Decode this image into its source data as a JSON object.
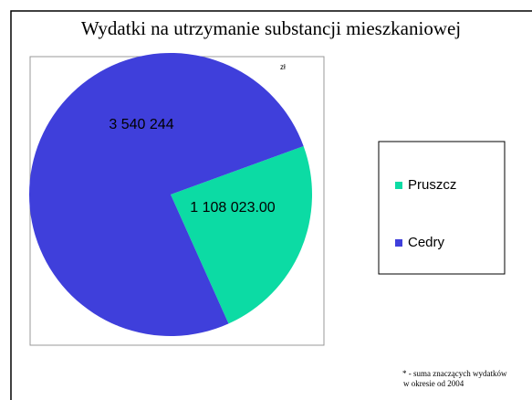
{
  "chart_data": {
    "type": "pie",
    "title": "Wydatki na utrzymanie substancji mieszkaniowej",
    "unit": "zł",
    "categories": [
      "Pruszcz",
      "Cedry"
    ],
    "values": [
      1108023.0,
      3540244
    ],
    "value_labels": [
      "1 108 023.00",
      "3 540 244"
    ],
    "colors": [
      "#0cdba4",
      "#3f3fdb"
    ],
    "legend": "right",
    "footnote": [
      "* - suma znaczących wydatków",
      "w okresie od 2004"
    ]
  }
}
